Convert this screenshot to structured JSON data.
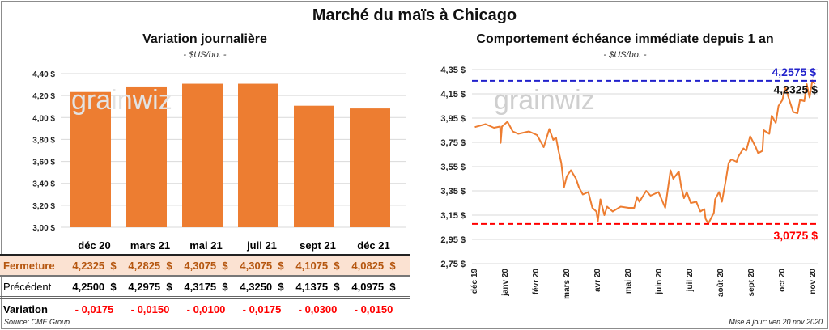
{
  "title": "Marché du maïs à Chicago",
  "left": {
    "subtitle": "Variation journalière",
    "unit": "- $US/bo. -",
    "table": {
      "months": [
        "déc 20",
        "mars 21",
        "mai 21",
        "juil 21",
        "sept 21",
        "déc 21"
      ],
      "rows": [
        {
          "label": "Fermeture",
          "values": [
            "4,2325  $",
            "4,2825  $",
            "4,3075  $",
            "4,3075  $",
            "4,1075  $",
            "4,0825  $"
          ]
        },
        {
          "label": "Précédent",
          "values": [
            "4,2500  $",
            "4,2975  $",
            "4,3175  $",
            "4,3250  $",
            "4,1375  $",
            "4,0975  $"
          ]
        },
        {
          "label": "Variation",
          "values": [
            "- 0,0175",
            "- 0,0150",
            "- 0,0100",
            "- 0,0175",
            "- 0,0300",
            "- 0,0150"
          ]
        }
      ]
    },
    "source": "Source: CME Group"
  },
  "right": {
    "subtitle": "Comportement échéance immédiate depuis 1 an",
    "unit": "- $US/bo. -",
    "update": "Mise à jour: ven 20 nov 2020",
    "logo_text": "grainwiz"
  },
  "colors": {
    "bar": "#ed7d31",
    "line": "#ed7d31",
    "high": "#2222cc",
    "low": "#ff0000",
    "grid": "#d9d9d9"
  },
  "chart_data": [
    {
      "type": "bar",
      "title": "Variation journalière",
      "ylabel": "$US/bo.",
      "categories": [
        "déc 20",
        "mars 21",
        "mai 21",
        "juil 21",
        "sept 21",
        "déc 21"
      ],
      "values": [
        4.2325,
        4.2825,
        4.3075,
        4.3075,
        4.1075,
        4.0825
      ],
      "ylim": [
        3.0,
        4.4
      ],
      "yticks": [
        "3,00 $",
        "3,20 $",
        "3,40 $",
        "3,60 $",
        "3,80 $",
        "4,00 $",
        "4,20 $",
        "4,40 $"
      ],
      "grid": true
    },
    {
      "type": "line",
      "title": "Comportement échéance immédiate depuis 1 an",
      "ylabel": "$US/bo.",
      "xticks": [
        "déc 19",
        "janv 20",
        "févr 20",
        "mars 20",
        "avr 20",
        "mai 20",
        "juin 20",
        "juil 20",
        "août 20",
        "sept 20",
        "oct 20",
        "nov 20"
      ],
      "yticks": [
        "2,75 $",
        "2,95 $",
        "3,15 $",
        "3,35 $",
        "3,55 $",
        "3,75 $",
        "3,95 $",
        "4,15 $",
        "4,35 $"
      ],
      "ylim": [
        2.75,
        4.35
      ],
      "x_months": [
        0.04,
        0.39,
        0.66,
        0.86,
        0.88,
        0.92,
        1.1,
        1.27,
        1.45,
        1.8,
        2.06,
        2.28,
        2.46,
        2.59,
        2.68,
        2.76,
        2.85,
        2.94,
        3.03,
        3.16,
        3.33,
        3.42,
        3.55,
        3.73,
        3.86,
        3.99,
        4.04,
        4.12,
        4.25,
        4.34,
        4.52,
        4.78,
        5.04,
        5.22,
        5.31,
        5.39,
        5.61,
        5.75,
        6.01,
        6.23,
        6.4,
        6.49,
        6.67,
        6.75,
        6.84,
        6.93,
        7.06,
        7.24,
        7.37,
        7.5,
        7.54,
        7.63,
        7.81,
        7.85,
        7.98,
        8.07,
        8.2,
        8.29,
        8.38,
        8.55,
        8.6,
        8.77,
        8.86,
        8.99,
        9.17,
        9.25,
        9.39,
        9.43,
        9.61,
        9.69,
        9.82,
        9.91,
        10.04,
        10.13,
        10.26,
        10.39,
        10.53,
        10.61,
        10.75,
        10.83,
        10.92,
        11.01,
        11.1
      ],
      "values": [
        3.875,
        3.9,
        3.87,
        3.88,
        3.745,
        3.88,
        3.92,
        3.84,
        3.82,
        3.84,
        3.81,
        3.71,
        3.86,
        3.77,
        3.79,
        3.68,
        3.58,
        3.38,
        3.47,
        3.52,
        3.45,
        3.38,
        3.32,
        3.34,
        3.21,
        3.18,
        3.1,
        3.28,
        3.15,
        3.22,
        3.18,
        3.22,
        3.21,
        3.21,
        3.3,
        3.26,
        3.35,
        3.31,
        3.34,
        3.21,
        3.52,
        3.45,
        3.51,
        3.38,
        3.29,
        3.34,
        3.25,
        3.26,
        3.18,
        3.2,
        3.12,
        3.08,
        3.17,
        3.28,
        3.34,
        3.26,
        3.44,
        3.58,
        3.61,
        3.59,
        3.63,
        3.7,
        3.68,
        3.8,
        3.71,
        3.66,
        3.68,
        3.85,
        3.82,
        3.97,
        3.91,
        4.05,
        4.1,
        4.21,
        4.1,
        4.0,
        3.99,
        4.1,
        4.09,
        4.23,
        4.12,
        4.26,
        4.2325
      ],
      "annotations": [
        {
          "label": "4,2575 $",
          "value": 4.2575,
          "kind": "high"
        },
        {
          "label": "4,2325 $",
          "value": 4.2325,
          "kind": "last"
        },
        {
          "label": "3,0775 $",
          "value": 3.0775,
          "kind": "low"
        }
      ],
      "grid": true
    }
  ]
}
